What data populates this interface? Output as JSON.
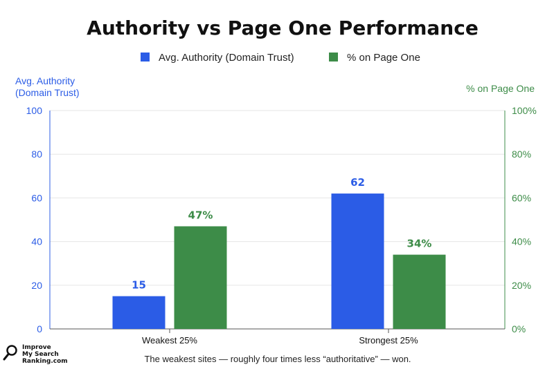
{
  "chart_data": {
    "type": "bar",
    "title": "Authority vs Page One Performance",
    "categories": [
      "Weakest 25%",
      "Strongest 25%"
    ],
    "series": [
      {
        "name": "Avg. Authority (Domain Trust)",
        "axis": "left",
        "color": "#2b5ce6",
        "values": [
          15,
          62
        ],
        "labels": [
          "15",
          "62"
        ]
      },
      {
        "name": "% on Page One",
        "axis": "right",
        "color": "#3d8c48",
        "values": [
          47,
          34
        ],
        "labels": [
          "47%",
          "34%"
        ]
      }
    ],
    "left_axis": {
      "title_lines": [
        "Avg. Authority",
        "(Domain Trust)"
      ],
      "color": "#2b5ce6",
      "ylim": [
        0,
        100
      ],
      "ticks": [
        0,
        20,
        40,
        60,
        80,
        100
      ],
      "tick_labels": [
        "0",
        "20",
        "40",
        "60",
        "80",
        "100"
      ]
    },
    "right_axis": {
      "title": "% on Page One",
      "color": "#3d8c48",
      "ylim": [
        0,
        100
      ],
      "ticks": [
        0,
        20,
        40,
        60,
        80,
        100
      ],
      "tick_labels": [
        "0%",
        "20%",
        "40%",
        "60%",
        "80%",
        "100%"
      ]
    },
    "grid": true,
    "legend_position": "top-center"
  },
  "caption": "The weakest sites — roughly four times less “authoritative” — won.",
  "logo": {
    "lines": [
      "Improve",
      "My Search",
      "Ranking.com"
    ]
  }
}
